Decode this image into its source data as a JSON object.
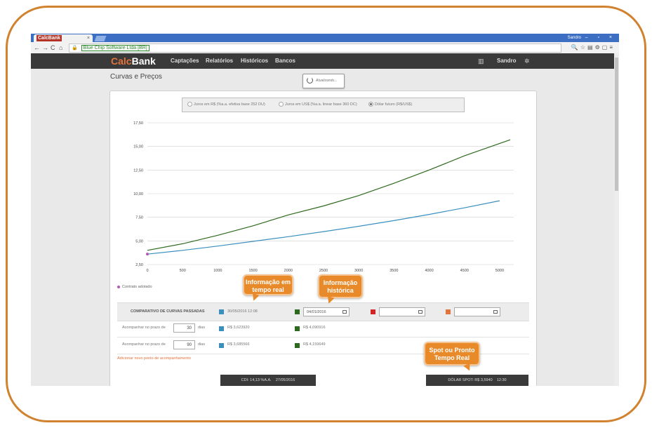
{
  "browser": {
    "tab_logo_prefix": "Calc",
    "tab_logo_suffix": "Bank",
    "tab_close": "×",
    "window_user": "Sandro",
    "window_buttons": "– ▫ ×",
    "address_owner": "Blue Chip Software Ltda [BR]"
  },
  "nav": {
    "brand_prefix": "Calc",
    "brand_suffix": "Bank",
    "menu": [
      "Captações",
      "Relatórios",
      "Históricos",
      "Bancos"
    ],
    "user": "Sandro"
  },
  "page": {
    "title": "Curvas e Preços",
    "refresh_label": "Atualizando..."
  },
  "radios": [
    {
      "label": "Juros em R$ (%a.a. efetiva base 252 DU)",
      "selected": false
    },
    {
      "label": "Juros em US$ (%a.a. linear base 360 DC)",
      "selected": false
    },
    {
      "label": "Dólar futuro (R$/US$)",
      "selected": true
    }
  ],
  "chart_data": {
    "type": "line",
    "xlim": [
      0,
      5200
    ],
    "ylim": [
      2.5,
      17.5
    ],
    "x_ticks": [
      "0",
      "500",
      "1000",
      "1500",
      "2000",
      "2500",
      "3000",
      "3500",
      "4000",
      "4500",
      "5000"
    ],
    "y_ticks": [
      "2,50",
      "5,00",
      "7,50",
      "10,00",
      "12,50",
      "15,00",
      "17,50"
    ],
    "grid": true,
    "series": [
      {
        "color": "#3a8fc0",
        "points": [
          [
            0,
            3.6
          ],
          [
            500,
            4.0
          ],
          [
            1000,
            4.45
          ],
          [
            1500,
            4.95
          ],
          [
            2000,
            5.45
          ],
          [
            2500,
            5.98
          ],
          [
            3000,
            6.55
          ],
          [
            3500,
            7.15
          ],
          [
            4000,
            7.8
          ],
          [
            4500,
            8.5
          ],
          [
            5000,
            9.25
          ]
        ]
      },
      {
        "color": "#2e6a1e",
        "points": [
          [
            0,
            4.0
          ],
          [
            500,
            4.7
          ],
          [
            1000,
            5.6
          ],
          [
            1500,
            6.6
          ],
          [
            2000,
            7.75
          ],
          [
            2500,
            8.7
          ],
          [
            3000,
            9.8
          ],
          [
            3500,
            11.1
          ],
          [
            4000,
            12.5
          ],
          [
            4500,
            14.0
          ],
          [
            5150,
            15.7
          ]
        ]
      }
    ],
    "marker": {
      "x": 0,
      "y": 3.6,
      "color": "#b35ab3"
    },
    "legend": "Contrato adotado"
  },
  "comparison": {
    "title": "COMPARATIVO DE CURVAS PASSADAS",
    "columns": [
      {
        "color": "#3a8fc0",
        "value": "30/05/2016 12:08",
        "editable": false
      },
      {
        "color": "#2e6a1e",
        "value": "04/01/2016",
        "editable": true
      },
      {
        "color": "#d42424",
        "value": "",
        "editable": true
      },
      {
        "color": "#e2733b",
        "value": "",
        "editable": true
      }
    ],
    "rows": [
      {
        "label": "Acompanhar no prazo de",
        "days": "30",
        "unit": "dias",
        "values": [
          "R$ 3,623920",
          "R$ 4,090916"
        ]
      },
      {
        "label": "Acompanhar no prazo de",
        "days": "90",
        "unit": "dias",
        "values": [
          "R$ 3,685566",
          "R$ 4,159649"
        ]
      }
    ],
    "add_link": "Adicionar novo ponto de acompanhamento"
  },
  "status": {
    "cdi": "CDI: 14,13 %A.A.",
    "cdi_date": "27/05/2016",
    "spot": "DÓLAR SPOT: R$ 3,5940",
    "spot_time": "12:30"
  },
  "callouts": {
    "realtime": "Informação em tempo real",
    "historic": "Informação histórica",
    "spot": "Spot ou Pronto Tempo Real"
  },
  "colors": {
    "accent": "#e2733b",
    "frame": "#d0822e"
  }
}
